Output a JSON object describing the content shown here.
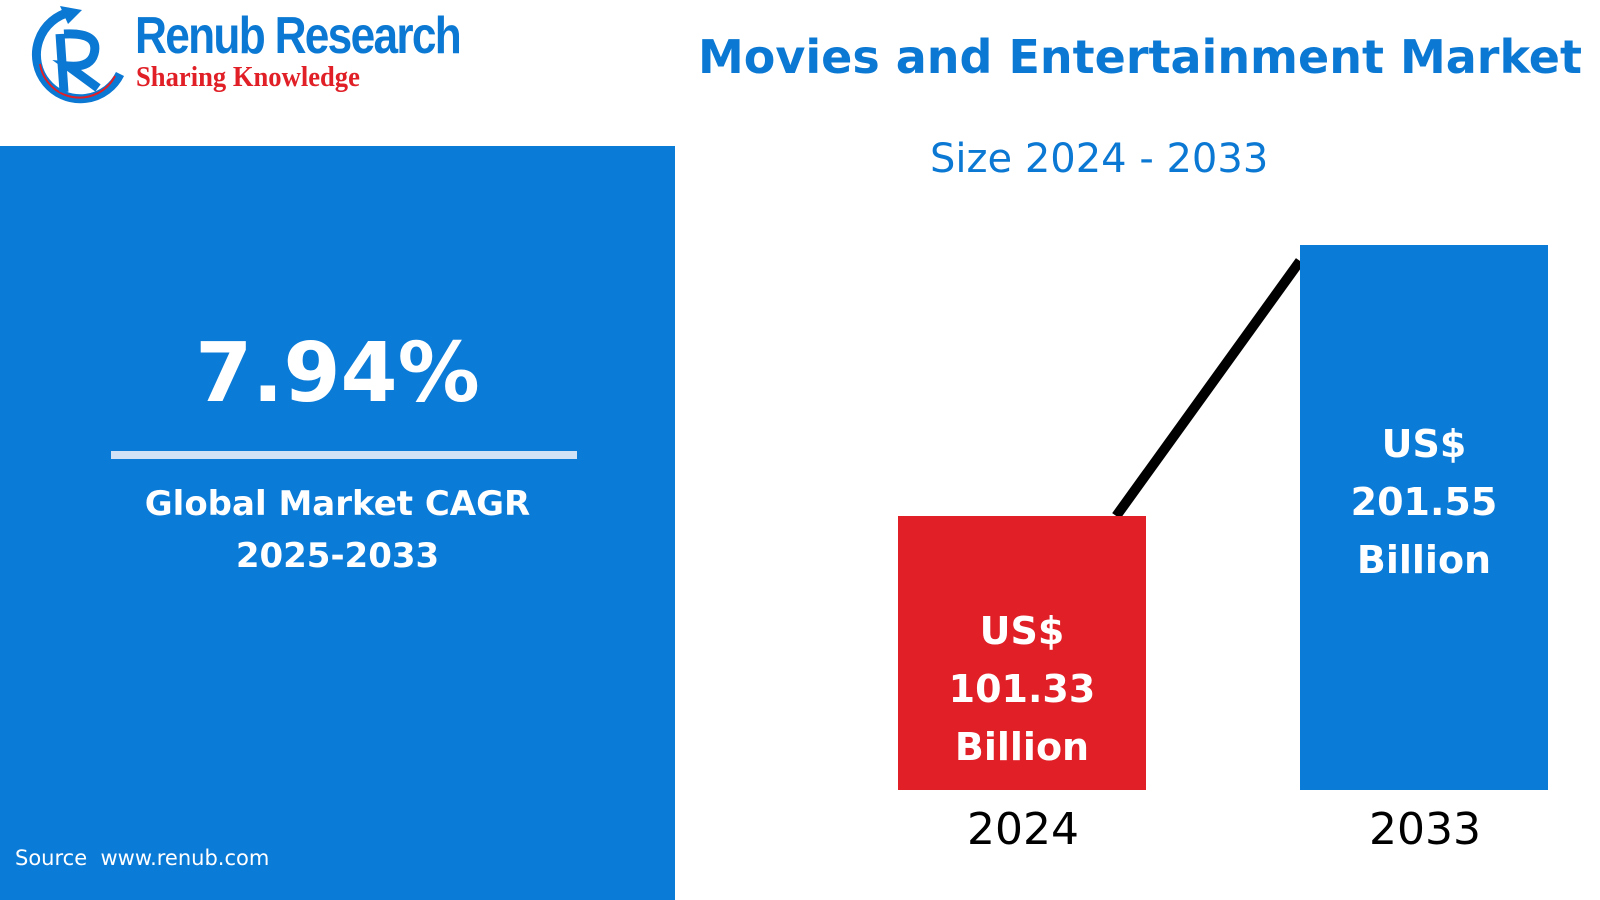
{
  "logo": {
    "name": "Renub Research",
    "tagline": "Sharing Knowledge"
  },
  "header": {
    "title": "Movies and Entertainment Market",
    "subtitle": "Size 2024 - 2033"
  },
  "left_panel": {
    "cagr_value": "7.94%",
    "cagr_label_line1": "Global Market CAGR",
    "cagr_label_line2": "2025-2033",
    "source": "Source  www.renub.com"
  },
  "colors": {
    "primary_blue": "#0b7bd8",
    "accent_red": "#e01f26",
    "trend_line": "#000000"
  },
  "chart_data": {
    "type": "bar",
    "title": "Movies and Entertainment Market",
    "subtitle": "Size 2024 - 2033",
    "categories": [
      "2024",
      "2033"
    ],
    "values": [
      101.33,
      201.55
    ],
    "unit": "US$ Billion",
    "bar_colors": [
      "#e01f26",
      "#0b7bd8"
    ],
    "data_labels": [
      {
        "currency": "US$",
        "value": "101.33",
        "unit": "Billion"
      },
      {
        "currency": "US$",
        "value": "201.55",
        "unit": "Billion"
      }
    ],
    "trend_line": true,
    "grid": false
  }
}
